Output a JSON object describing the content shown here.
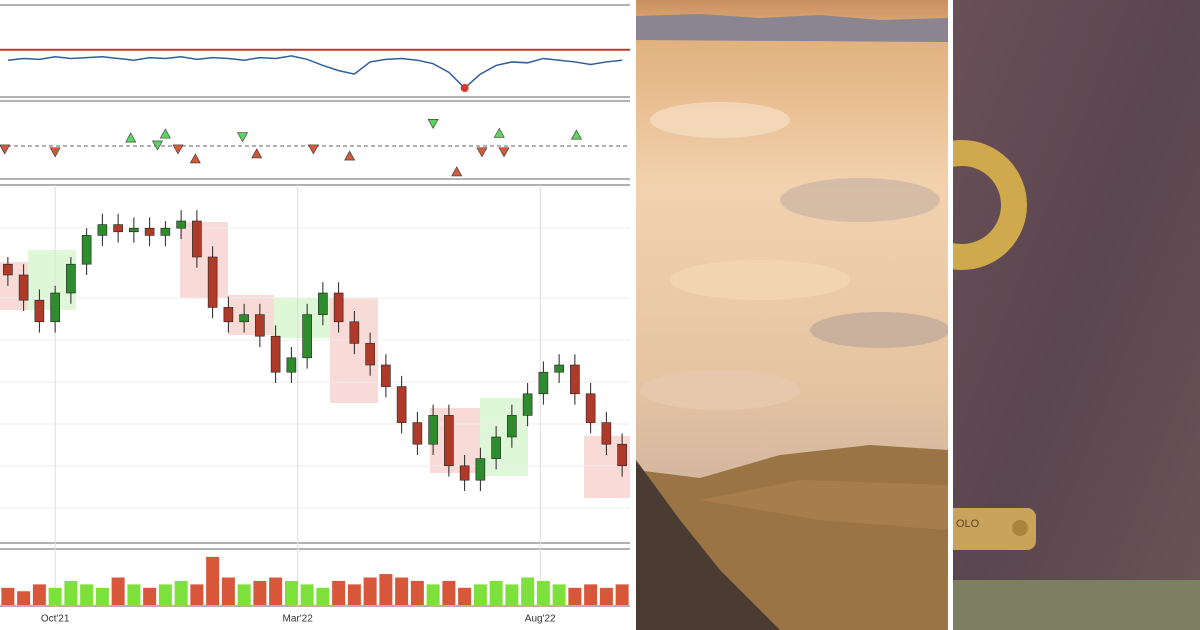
{
  "chart_data": [
    {
      "type": "oscillator",
      "xlim": [
        0,
        40
      ],
      "ylim": [
        0,
        100
      ],
      "color": "#2f5f9a",
      "hline": 52,
      "hline_color": "#c0392b",
      "highlight_index": 29,
      "highlight_color": "#d6382b",
      "values": [
        40,
        42,
        41,
        44,
        42,
        43,
        44,
        42,
        40,
        43,
        42,
        44,
        41,
        43,
        42,
        40,
        43,
        42,
        45,
        41,
        34,
        28,
        24,
        38,
        41,
        42,
        40,
        36,
        26,
        8,
        24,
        34,
        38,
        37,
        42,
        40,
        38,
        35,
        38,
        40
      ]
    },
    {
      "type": "signals",
      "xlim": [
        0,
        40
      ],
      "ylim": [
        -10,
        10
      ],
      "series": [
        {
          "color": "#5fd35f",
          "marker": "up",
          "x": [
            8.3,
            10.5,
            31.7,
            36.6
          ],
          "values": [
            2.2,
            3.3,
            3.5,
            3.0
          ]
        },
        {
          "color": "#5fd35f",
          "marker": "down",
          "x": [
            10.0,
            15.4,
            27.5
          ],
          "values": [
            0.3,
            2.6,
            6.3
          ]
        },
        {
          "color": "#d2593a",
          "marker": "down",
          "x": [
            0.3,
            3.5,
            11.3,
            19.9,
            30.6,
            32.0
          ],
          "values": [
            -0.8,
            -1.6,
            -0.8,
            -0.8,
            -1.6,
            -1.6
          ]
        },
        {
          "color": "#d2593a",
          "marker": "up",
          "x": [
            12.4,
            16.3,
            22.2,
            29.0
          ],
          "values": [
            -3.6,
            -2.2,
            -2.8,
            -7.2
          ]
        }
      ]
    },
    {
      "type": "candlestick",
      "xlim": [
        0,
        40
      ],
      "ylim": [
        0,
        100
      ],
      "up_color": "#2e8b2e",
      "down_color": "#b03a2a",
      "open": [
        78,
        75,
        68,
        62,
        70,
        78,
        86,
        89,
        87,
        88,
        86,
        88,
        90,
        80,
        66,
        62,
        64,
        58,
        48,
        52,
        64,
        70,
        62,
        56,
        50,
        44,
        34,
        28,
        36,
        22,
        18,
        24,
        30,
        36,
        42,
        48,
        50,
        42,
        34,
        28
      ],
      "high": [
        80,
        78,
        71,
        72,
        80,
        88,
        92,
        92,
        91,
        91,
        90,
        93,
        93,
        83,
        69,
        67,
        67,
        61,
        55,
        67,
        73,
        73,
        65,
        59,
        53,
        47,
        37,
        39,
        39,
        25,
        27,
        33,
        39,
        45,
        51,
        53,
        53,
        45,
        37,
        31
      ],
      "low": [
        72,
        65,
        59,
        59,
        67,
        75,
        83,
        84,
        84,
        83,
        83,
        85,
        77,
        63,
        59,
        59,
        55,
        45,
        45,
        49,
        61,
        59,
        53,
        47,
        41,
        31,
        25,
        25,
        19,
        15,
        15,
        21,
        27,
        33,
        39,
        45,
        39,
        31,
        25,
        19
      ],
      "close": [
        75,
        68,
        62,
        70,
        78,
        86,
        89,
        87,
        88,
        86,
        88,
        90,
        80,
        66,
        62,
        64,
        58,
        48,
        52,
        64,
        70,
        62,
        56,
        50,
        44,
        34,
        28,
        36,
        22,
        18,
        24,
        30,
        36,
        42,
        48,
        50,
        42,
        34,
        28,
        22
      ]
    },
    {
      "type": "volume",
      "xlim": [
        0,
        40
      ],
      "ylim": [
        0,
        16
      ],
      "up_color": "#7ee03a",
      "down_color": "#d8573a",
      "grid": true,
      "xticks": [
        {
          "value": 3.5,
          "label": "Oct'21"
        },
        {
          "value": 18.9,
          "label": "Mar'22"
        },
        {
          "value": 34.3,
          "label": "Aug'22"
        }
      ],
      "values": [
        5,
        4,
        6,
        5,
        7,
        6,
        5,
        8,
        6,
        5,
        6,
        7,
        6,
        14,
        8,
        6,
        7,
        8,
        7,
        6,
        5,
        7,
        6,
        8,
        9,
        8,
        7,
        6,
        7,
        5,
        6,
        7,
        6,
        8,
        7,
        6,
        5,
        6,
        5,
        6
      ]
    }
  ],
  "plate_text": "OLO"
}
